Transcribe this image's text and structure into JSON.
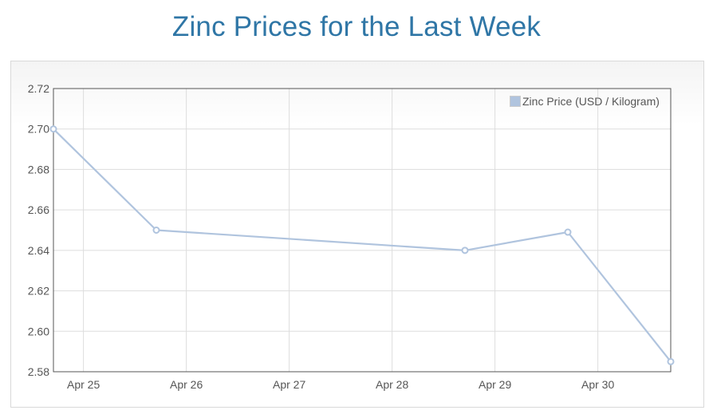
{
  "title": "Zinc Prices for the Last Week",
  "colors": {
    "title": "#2f76a6",
    "series": "#b0c4de",
    "grid": "#dddddd",
    "axis": "#555555"
  },
  "chart_data": {
    "type": "line",
    "title": "Zinc Prices for the Last Week",
    "xlabel": "",
    "ylabel": "",
    "grid": true,
    "legend_position": "top-right",
    "x_ticks": [
      "Apr 25",
      "Apr 26",
      "Apr 27",
      "Apr 28",
      "Apr 29",
      "Apr 30"
    ],
    "ylim": [
      2.58,
      2.72
    ],
    "y_ticks": [
      "2.58",
      "2.60",
      "2.62",
      "2.64",
      "2.66",
      "2.68",
      "2.70",
      "2.72"
    ],
    "series": [
      {
        "name": "Zinc Price (USD / Kilogram)",
        "points": [
          {
            "x": "Apr 24 17:00",
            "y": 2.7
          },
          {
            "x": "Apr 25 17:00",
            "y": 2.65
          },
          {
            "x": "Apr 28 17:00",
            "y": 2.64
          },
          {
            "x": "Apr 29 17:00",
            "y": 2.649
          },
          {
            "x": "Apr 30 17:00",
            "y": 2.585
          }
        ]
      }
    ]
  }
}
